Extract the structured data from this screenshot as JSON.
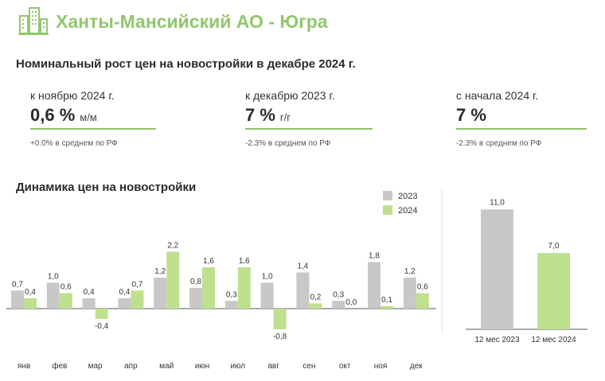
{
  "header": {
    "region_title": "Ханты-Мансийский АО - Югра",
    "section_title": "Номинальный рост цен на новостройки в декабре 2024 г."
  },
  "kpis": [
    {
      "label": "к ноябрю 2024 г.",
      "value": "0,6 %",
      "unit": "м/м",
      "note": "+0.0% в среднем по РФ"
    },
    {
      "label": "к декабрю 2023 г.",
      "value": "7 %",
      "unit": "г/г",
      "note": "-2.3% в среднем по РФ"
    },
    {
      "label": "с начала 2024 г.",
      "value": "7 %",
      "unit": "",
      "note": "-2.3% в среднем по РФ"
    }
  ],
  "dynamics_title": "Динамика цен на новостройки",
  "colors": {
    "series_2023": "#c8c8c8",
    "series_2024": "#bfe08f",
    "accent": "#92c66c"
  },
  "chart_data": [
    {
      "type": "bar",
      "title": "Динамика цен на новостройки",
      "categories": [
        "янв",
        "фев",
        "мар",
        "апр",
        "май",
        "июн",
        "июл",
        "авг",
        "сен",
        "окт",
        "ноя",
        "дек"
      ],
      "series": [
        {
          "name": "2023",
          "values": [
            0.7,
            1.0,
            0.4,
            0.4,
            1.2,
            0.8,
            0.3,
            1.0,
            1.4,
            0.3,
            1.8,
            1.2
          ],
          "labels": [
            "0,7",
            "1,0",
            "0,4",
            "0,4",
            "1,2",
            "0,8",
            "0,3",
            "1,0",
            "1,4",
            "0,3",
            "1,8",
            "1,2"
          ]
        },
        {
          "name": "2024",
          "values": [
            0.4,
            0.6,
            -0.4,
            0.7,
            2.2,
            1.6,
            1.6,
            -0.8,
            0.2,
            0.0,
            0.1,
            0.6
          ],
          "labels": [
            "0,4",
            "0,6",
            "-0,4",
            "0,7",
            "2,2",
            "1,6",
            "1,6",
            "-0,8",
            "0,2",
            "0,0",
            "0,1",
            "0,6"
          ]
        }
      ],
      "ylim": [
        -0.9,
        2.4
      ],
      "legend": "top-right"
    },
    {
      "type": "bar",
      "categories": [
        "12 мес 2023",
        "12 мес 2024"
      ],
      "values": [
        11.0,
        7.0
      ],
      "labels": [
        "11,0",
        "7,0"
      ],
      "ylim": [
        0,
        12
      ]
    }
  ]
}
